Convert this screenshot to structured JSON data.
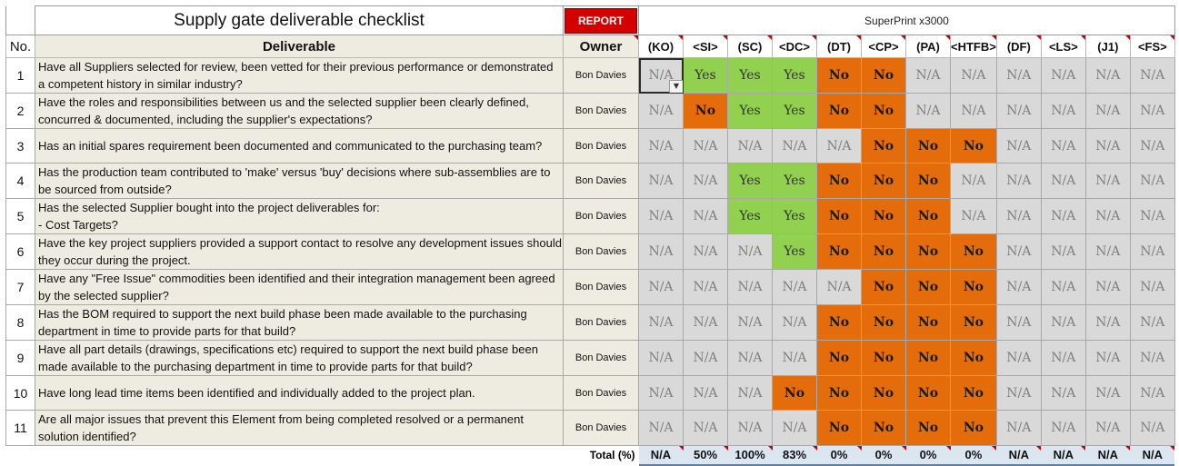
{
  "checklist": {
    "title": "Supply gate deliverable checklist",
    "report_label": "REPORT",
    "product": "SuperPrint x3000",
    "headers": {
      "no": "No.",
      "deliverable": "Deliverable",
      "owner": "Owner"
    },
    "phases": [
      "(KO)",
      "<SI>",
      "(SC)",
      "<DC>",
      "(DT)",
      "<CP>",
      "(PA)",
      "<HTFB>",
      "(DF)",
      "<LS>",
      "(J1)",
      "<FS>"
    ],
    "rows": [
      {
        "no": "1",
        "text": "Have all Suppliers selected for review, been vetted for their previous performance or demonstrated a competent  history in similar industry?",
        "owner": "Bon Davies",
        "status": [
          "N/A",
          "Yes",
          "Yes",
          "Yes",
          "No",
          "No",
          "N/A",
          "N/A",
          "N/A",
          "N/A",
          "N/A",
          "N/A"
        ]
      },
      {
        "no": "2",
        "text": "Have the roles and responsibilities between us and the selected supplier been clearly defined, concurred & documented, including the supplier's expectations?",
        "owner": "Bon Davies",
        "status": [
          "N/A",
          "No",
          "Yes",
          "Yes",
          "No",
          "No",
          "N/A",
          "N/A",
          "N/A",
          "N/A",
          "N/A",
          "N/A"
        ]
      },
      {
        "no": "3",
        "text": "Has an initial spares requirement been documented and communicated to the purchasing team?",
        "owner": "Bon Davies",
        "status": [
          "N/A",
          "N/A",
          "N/A",
          "N/A",
          "N/A",
          "No",
          "No",
          "No",
          "N/A",
          "N/A",
          "N/A",
          "N/A"
        ]
      },
      {
        "no": "4",
        "text": "Has the production team contributed to 'make' versus 'buy' decisions where sub-assemblies are to be sourced from outside?",
        "owner": "Bon Davies",
        "status": [
          "N/A",
          "N/A",
          "Yes",
          "Yes",
          "No",
          "No",
          "No",
          "N/A",
          "N/A",
          "N/A",
          "N/A",
          "N/A"
        ]
      },
      {
        "no": "5",
        "text": "Has the selected Supplier bought into the project deliverables for:\n- Cost Targets?",
        "owner": "Bon Davies",
        "status": [
          "N/A",
          "N/A",
          "Yes",
          "Yes",
          "No",
          "No",
          "No",
          "N/A",
          "N/A",
          "N/A",
          "N/A",
          "N/A"
        ]
      },
      {
        "no": "6",
        "text": "Have the key project suppliers provided a support contact to resolve any development issues should they occur during the project.",
        "owner": "Bon Davies",
        "status": [
          "N/A",
          "N/A",
          "N/A",
          "Yes",
          "No",
          "No",
          "No",
          "No",
          "N/A",
          "N/A",
          "N/A",
          "N/A"
        ]
      },
      {
        "no": "7",
        "text": "Have any \"Free Issue\" commodities been identified and their integration management been agreed by the selected supplier?",
        "owner": "Bon Davies",
        "status": [
          "N/A",
          "N/A",
          "N/A",
          "N/A",
          "N/A",
          "No",
          "No",
          "No",
          "N/A",
          "N/A",
          "N/A",
          "N/A"
        ]
      },
      {
        "no": "8",
        "text": "Has the BOM required to support the next build phase been made available to the purchasing department in time to provide parts for that build?",
        "owner": "Bon Davies",
        "status": [
          "N/A",
          "N/A",
          "N/A",
          "N/A",
          "No",
          "No",
          "No",
          "No",
          "N/A",
          "N/A",
          "N/A",
          "N/A"
        ]
      },
      {
        "no": "9",
        "text": "Have all part details (drawings, specifications etc) required to support the next build phase been made available to the purchasing department in time to provide parts for that build?",
        "owner": "Bon Davies",
        "status": [
          "N/A",
          "N/A",
          "N/A",
          "N/A",
          "No",
          "No",
          "No",
          "No",
          "N/A",
          "N/A",
          "N/A",
          "N/A"
        ]
      },
      {
        "no": "10",
        "text": "Have long lead time items been identified and individually added to the project plan.",
        "owner": "Bon Davies",
        "status": [
          "N/A",
          "N/A",
          "N/A",
          "No",
          "No",
          "No",
          "No",
          "No",
          "N/A",
          "N/A",
          "N/A",
          "N/A"
        ]
      },
      {
        "no": "11",
        "text": "Are all major issues  that prevent this Element from being completed resolved or a permanent solution identified?",
        "owner": "Bon Davies",
        "status": [
          "N/A",
          "N/A",
          "N/A",
          "N/A",
          "No",
          "No",
          "No",
          "No",
          "N/A",
          "N/A",
          "N/A",
          "N/A"
        ]
      }
    ],
    "total_label": "Total (%)",
    "totals": [
      "N/A",
      "50%",
      "100%",
      "83%",
      "0%",
      "0%",
      "0%",
      "0%",
      "N/A",
      "N/A",
      "N/A",
      "N/A"
    ],
    "colors": {
      "yes": "#92d050",
      "no": "#e46c0a",
      "na": "#d9d9d9",
      "text_area": "#eeece1",
      "report": "#d40000",
      "total_fill": "#dce6f1"
    }
  }
}
